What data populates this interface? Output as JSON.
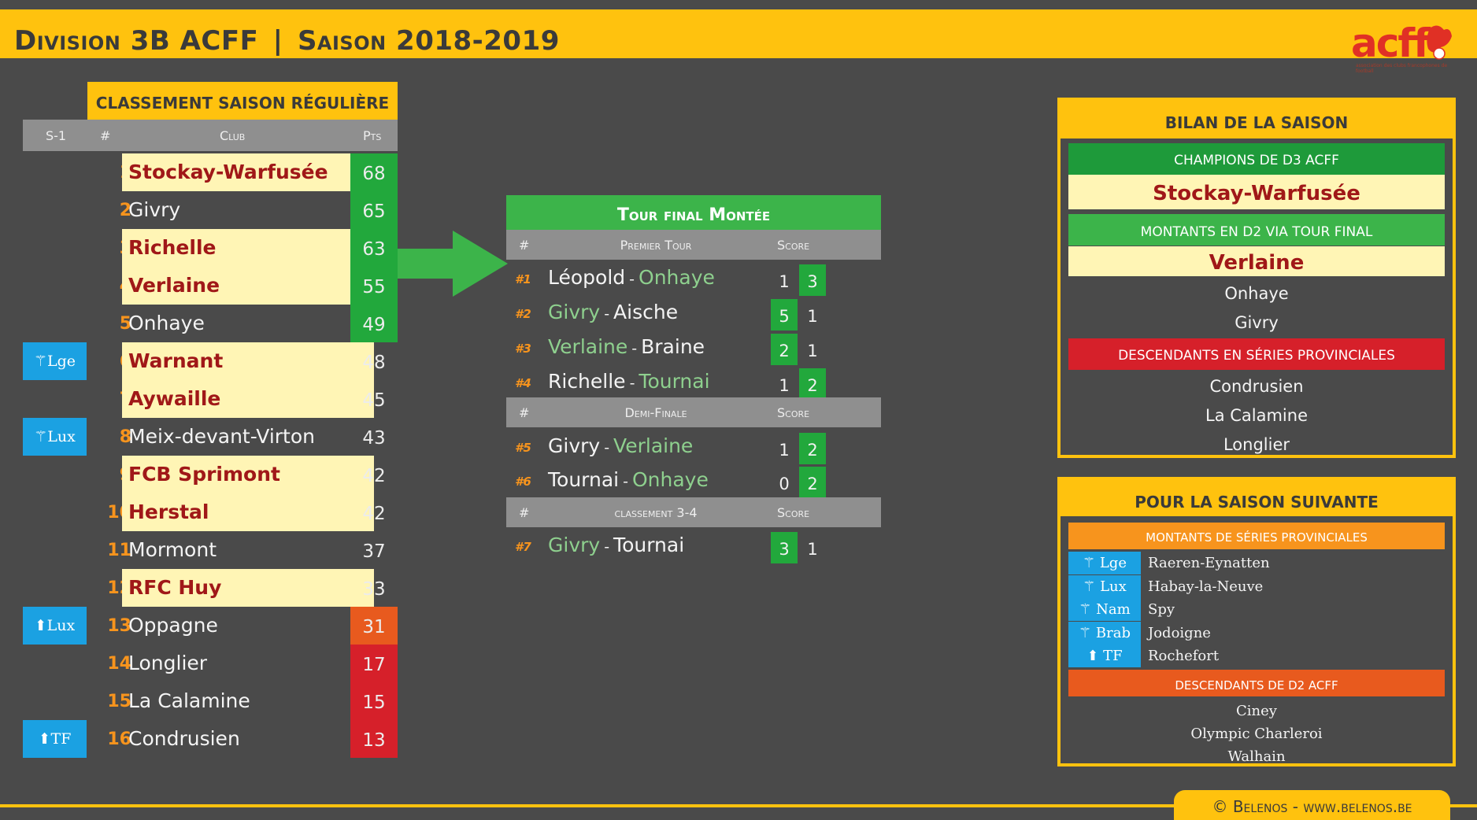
{
  "header": {
    "title_left": "Division 3B ACFF",
    "separator": "|",
    "title_right": "Saison 2018-2019",
    "logo_text": "acff",
    "logo_subtitle": "association des clubs francophones de football"
  },
  "standings": {
    "title": "CLASSEMENT SAISON RÉGULIÈRE",
    "columns": {
      "prev": "S-1",
      "rank": "#",
      "club": "Club",
      "pts": "Pts"
    },
    "rows": [
      {
        "badge": "",
        "rank": "1",
        "club": "Stockay-Warfusée",
        "pts": "68",
        "highlight": true,
        "pts_color": "green"
      },
      {
        "badge": "",
        "rank": "2",
        "club": "Givry",
        "pts": "65",
        "highlight": false,
        "pts_color": "green"
      },
      {
        "badge": "",
        "rank": "3",
        "club": "Richelle",
        "pts": "63",
        "highlight": true,
        "pts_color": "green"
      },
      {
        "badge": "",
        "rank": "4",
        "club": "Verlaine",
        "pts": "55",
        "highlight": true,
        "pts_color": "green"
      },
      {
        "badge": "",
        "rank": "5",
        "club": "Onhaye",
        "pts": "49",
        "highlight": false,
        "pts_color": "green"
      },
      {
        "badge": "⚚Lge",
        "rank": "6",
        "club": "Warnant",
        "pts": "48",
        "highlight": true,
        "pts_color": "none"
      },
      {
        "badge": "",
        "rank": "7",
        "club": "Aywaille",
        "pts": "45",
        "highlight": true,
        "pts_color": "none"
      },
      {
        "badge": "⚚Lux",
        "rank": "8",
        "club": "Meix-devant-Virton",
        "pts": "43",
        "highlight": false,
        "pts_color": "none"
      },
      {
        "badge": "",
        "rank": "9",
        "club": "FCB Sprimont",
        "pts": "42",
        "highlight": true,
        "pts_color": "none"
      },
      {
        "badge": "",
        "rank": "10",
        "club": "Herstal",
        "pts": "42",
        "highlight": true,
        "pts_color": "none"
      },
      {
        "badge": "",
        "rank": "11",
        "club": "Mormont",
        "pts": "37",
        "highlight": false,
        "pts_color": "none"
      },
      {
        "badge": "",
        "rank": "12",
        "club": "RFC Huy",
        "pts": "33",
        "highlight": true,
        "pts_color": "none"
      },
      {
        "badge": "⬆Lux",
        "rank": "13",
        "club": "Oppagne",
        "pts": "31",
        "highlight": false,
        "pts_color": "orange"
      },
      {
        "badge": "",
        "rank": "14",
        "club": "Longlier",
        "pts": "17",
        "highlight": false,
        "pts_color": "red"
      },
      {
        "badge": "",
        "rank": "15",
        "club": "La Calamine",
        "pts": "15",
        "highlight": false,
        "pts_color": "red"
      },
      {
        "badge": "⬆TF",
        "rank": "16",
        "club": "Condrusien",
        "pts": "13",
        "highlight": false,
        "pts_color": "red"
      }
    ]
  },
  "tour_final": {
    "title": "Tour final Montée",
    "sections": [
      {
        "hash": "#",
        "label": "Premier Tour",
        "score": "Score",
        "matches": [
          {
            "num": "#1",
            "home": "Léopold",
            "away": "Onhaye",
            "winner": "away",
            "s1": "1",
            "s2": "3"
          },
          {
            "num": "#2",
            "home": "Givry",
            "away": "Aische",
            "winner": "home",
            "s1": "5",
            "s2": "1"
          },
          {
            "num": "#3",
            "home": "Verlaine",
            "away": "Braine",
            "winner": "home",
            "s1": "2",
            "s2": "1"
          },
          {
            "num": "#4",
            "home": "Richelle",
            "away": "Tournai",
            "winner": "away",
            "s1": "1",
            "s2": "2"
          }
        ]
      },
      {
        "hash": "#",
        "label": "Demi-Finale",
        "score": "Score",
        "matches": [
          {
            "num": "#5",
            "home": "Givry",
            "away": "Verlaine",
            "winner": "away",
            "s1": "1",
            "s2": "2"
          },
          {
            "num": "#6",
            "home": "Tournai",
            "away": "Onhaye",
            "winner": "away",
            "s1": "0",
            "s2": "2"
          }
        ]
      },
      {
        "hash": "#",
        "label": "classement 3-4",
        "score": "Score",
        "matches": [
          {
            "num": "#7",
            "home": "Givry",
            "away": "Tournai",
            "winner": "home",
            "s1": "3",
            "s2": "1"
          }
        ]
      }
    ]
  },
  "bilan": {
    "title": "BILAN DE LA SAISON",
    "champions_label": "CHAMPIONS DE D3 ACFF",
    "champion": "Stockay-Warfusée",
    "promoted_label": "MONTANTS EN D2 VIA TOUR FINAL",
    "promoted": [
      "Verlaine",
      "Onhaye",
      "Givry"
    ],
    "relegated_label": "DESCENDANTS EN SÉRIES PROVINCIALES",
    "relegated": [
      "Condrusien",
      "La Calamine",
      "Longlier"
    ]
  },
  "next_season": {
    "title": "POUR LA SAISON SUIVANTE",
    "from_provincial_label": "MONTANTS DE SÉRIES PROVINCIALES",
    "from_provincial": [
      {
        "badge": "⚚ Lge",
        "club": "Raeren-Eynatten"
      },
      {
        "badge": "⚚ Lux",
        "club": "Habay-la-Neuve"
      },
      {
        "badge": "⚚ Nam",
        "club": "Spy"
      },
      {
        "badge": "⚚ Brab",
        "club": "Jodoigne"
      },
      {
        "badge": "⬆ TF",
        "club": "Rochefort"
      }
    ],
    "from_d2_label": "DESCENDANTS DE D2 ACFF",
    "from_d2": [
      "Ciney",
      "Olympic Charleroi",
      "Walhain"
    ]
  },
  "footer": {
    "credit": "© Belenos - www.belenos.be"
  },
  "colors": {
    "accent_yellow": "#ffc20e",
    "green": "#22a83c",
    "orange": "#e85a1e",
    "red": "#d6202a",
    "blue": "#1ba1e2",
    "background": "#4a4a4a"
  }
}
